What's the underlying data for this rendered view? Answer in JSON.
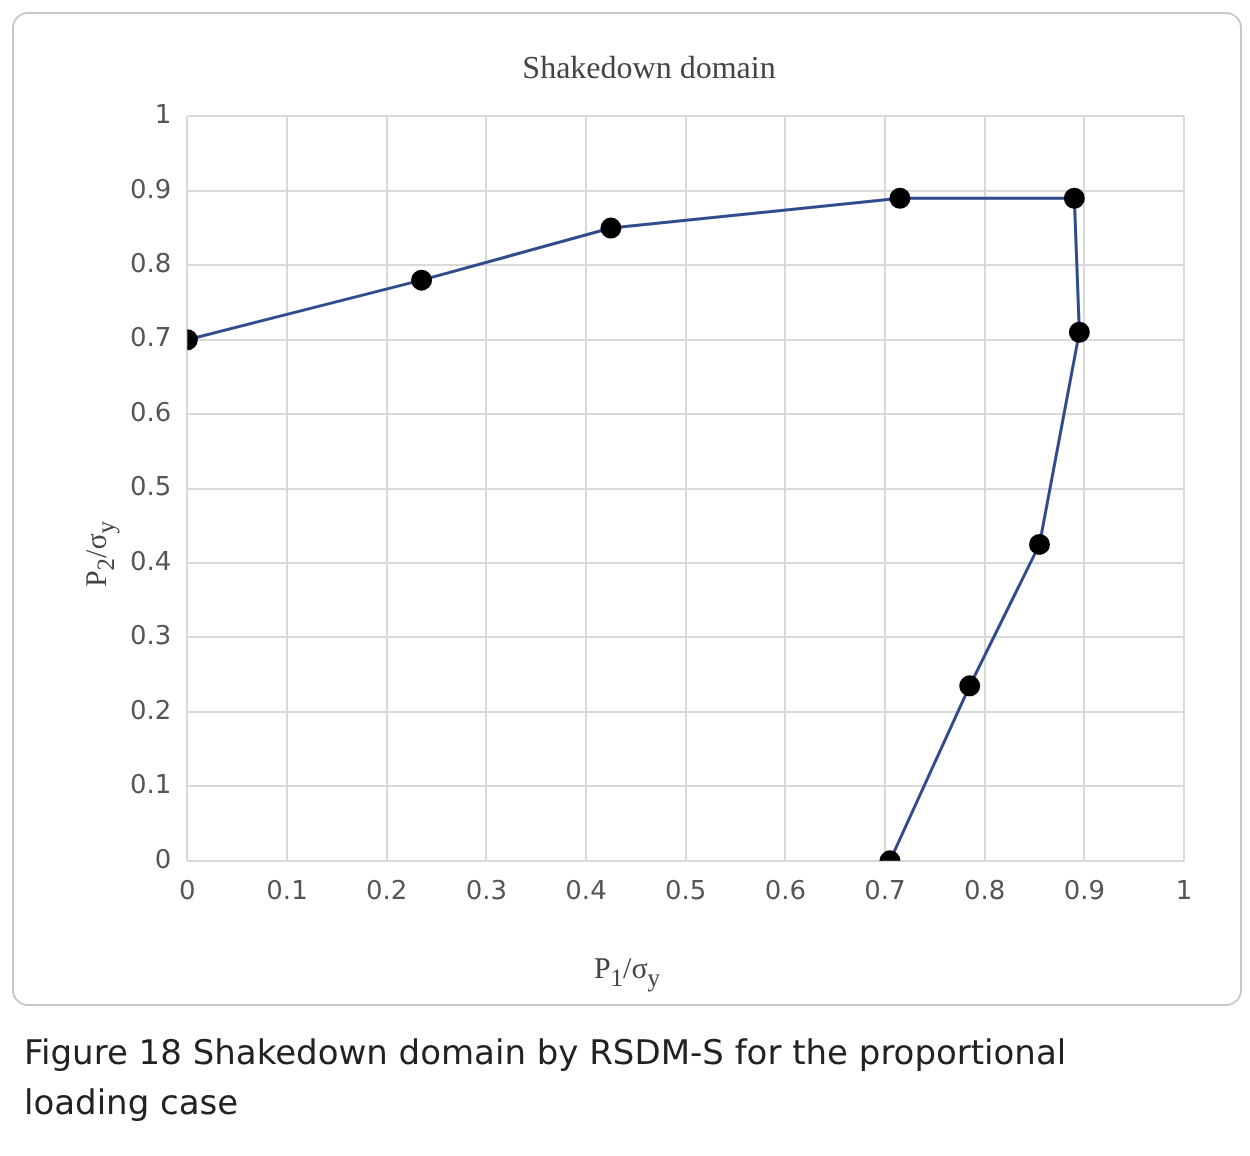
{
  "chart_data": {
    "type": "line",
    "title": "Shakedown domain",
    "xlabel": "P$_{1}$/σ$_{y}$",
    "ylabel": "P$_{2}$/σ$_{y}$",
    "series": [
      {
        "color": "#2f4b8c",
        "x": [
          0,
          0.235,
          0.425,
          0.715,
          0.89,
          0.895,
          0.855,
          0.785,
          0.705
        ],
        "values": [
          0.7,
          0.78,
          0.85,
          0.89,
          0.89,
          0.71,
          0.425,
          0.235,
          0
        ]
      }
    ],
    "xlim": [
      0,
      1
    ],
    "xticks": [
      0,
      0.1,
      0.2,
      0.3,
      0.4,
      0.5,
      0.6,
      0.7,
      0.8,
      0.9,
      1
    ],
    "ylim": [
      0,
      1
    ],
    "yticks": [
      0,
      0.1,
      0.2,
      0.3,
      0.4,
      0.5,
      0.6,
      0.7,
      0.8,
      0.9,
      1
    ],
    "grid": true,
    "marker": "circle",
    "legend": false,
    "annotations": [
      "Figure 18  Shakedown domain by RSDM-S for the proportional loading case"
    ]
  }
}
